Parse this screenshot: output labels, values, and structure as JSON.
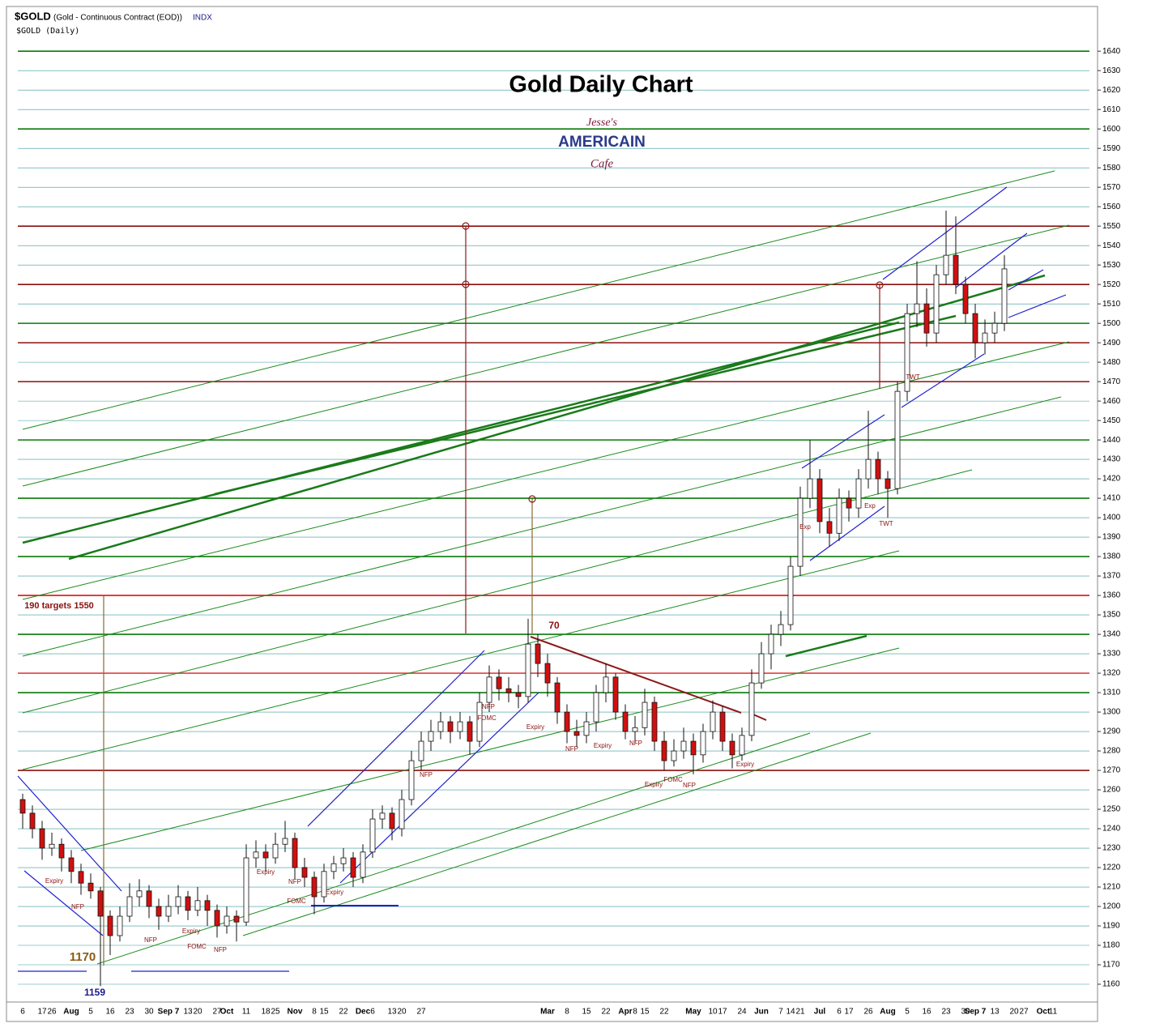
{
  "chart_data": {
    "type": "candlestick",
    "symbol": "$GOLD",
    "subtitle": "(Gold - Continuous Contract (EOD))",
    "exchange": "INDX",
    "period_label": "$GOLD (Daily)",
    "title": "Gold Daily Chart",
    "logo": [
      "Jesse's",
      "AMERICAIN",
      "Cafe"
    ],
    "ylim": [
      1151,
      1663
    ],
    "yticks": [
      1160,
      1170,
      1180,
      1190,
      1200,
      1210,
      1220,
      1230,
      1240,
      1250,
      1260,
      1270,
      1280,
      1290,
      1300,
      1310,
      1320,
      1330,
      1340,
      1350,
      1360,
      1370,
      1380,
      1390,
      1400,
      1410,
      1420,
      1430,
      1440,
      1450,
      1460,
      1470,
      1480,
      1490,
      1500,
      1510,
      1520,
      1530,
      1540,
      1550,
      1560,
      1570,
      1580,
      1590,
      1600,
      1610,
      1620,
      1630,
      1640
    ],
    "grid": true,
    "grid_color": "#3a9a9a",
    "up_color": "#ffffff",
    "down_color": "#d01010",
    "categories": [
      "6",
      null,
      "17",
      "26",
      null,
      "Aug",
      null,
      "5",
      null,
      "16",
      null,
      "23",
      null,
      "30",
      null,
      "Sep 7",
      null,
      "13",
      "20",
      null,
      "27",
      "Oct",
      null,
      "11",
      null,
      "18",
      "25",
      null,
      "Nov",
      null,
      "8",
      "15",
      null,
      "22",
      null,
      "Dec",
      "6",
      null,
      "13",
      "20",
      null,
      "27",
      null,
      null,
      null,
      null,
      null,
      null,
      null,
      null,
      null,
      null,
      null,
      null,
      "Mar",
      null,
      "8",
      null,
      "15",
      null,
      "22",
      null,
      "Apr",
      "8",
      "15",
      null,
      "22",
      null,
      null,
      "May",
      null,
      "10",
      "17",
      null,
      "24",
      null,
      "Jun",
      null,
      "7",
      "14",
      "21",
      null,
      "Jul",
      null,
      "6",
      "17",
      null,
      "26",
      null,
      "Aug",
      null,
      "5",
      null,
      "16",
      null,
      "23",
      null,
      "30",
      "Sep 7",
      null,
      "13",
      null,
      "20",
      "27",
      null,
      "Oct",
      "11",
      null,
      null,
      null,
      null
    ],
    "ohlc": [
      [
        1255,
        1258,
        1240,
        1248
      ],
      [
        1248,
        1252,
        1235,
        1240
      ],
      [
        1240,
        1244,
        1224,
        1230
      ],
      [
        1230,
        1238,
        1226,
        1232
      ],
      [
        1232,
        1235,
        1218,
        1225
      ],
      [
        1225,
        1229,
        1212,
        1218
      ],
      [
        1218,
        1222,
        1206,
        1212
      ],
      [
        1212,
        1217,
        1204,
        1208
      ],
      [
        1208,
        1210,
        1159,
        1195
      ],
      [
        1195,
        1198,
        1175,
        1185
      ],
      [
        1185,
        1200,
        1182,
        1195
      ],
      [
        1195,
        1212,
        1192,
        1205
      ],
      [
        1205,
        1214,
        1200,
        1208
      ],
      [
        1208,
        1211,
        1194,
        1200
      ],
      [
        1200,
        1204,
        1188,
        1195
      ],
      [
        1195,
        1206,
        1192,
        1200
      ],
      [
        1200,
        1211,
        1196,
        1205
      ],
      [
        1205,
        1208,
        1193,
        1198
      ],
      [
        1198,
        1210,
        1195,
        1203
      ],
      [
        1203,
        1206,
        1190,
        1198
      ],
      [
        1198,
        1201,
        1184,
        1190
      ],
      [
        1190,
        1200,
        1186,
        1195
      ],
      [
        1195,
        1198,
        1182,
        1192
      ],
      [
        1192,
        1232,
        1190,
        1225
      ],
      [
        1225,
        1234,
        1220,
        1228
      ],
      [
        1228,
        1232,
        1218,
        1225
      ],
      [
        1225,
        1238,
        1222,
        1232
      ],
      [
        1232,
        1244,
        1228,
        1235
      ],
      [
        1235,
        1238,
        1214,
        1220
      ],
      [
        1220,
        1225,
        1210,
        1215
      ],
      [
        1215,
        1218,
        1196,
        1205
      ],
      [
        1205,
        1222,
        1202,
        1218
      ],
      [
        1218,
        1226,
        1214,
        1222
      ],
      [
        1222,
        1230,
        1218,
        1225
      ],
      [
        1225,
        1228,
        1210,
        1215
      ],
      [
        1215,
        1232,
        1212,
        1228
      ],
      [
        1228,
        1250,
        1225,
        1245
      ],
      [
        1245,
        1252,
        1240,
        1248
      ],
      [
        1248,
        1251,
        1234,
        1240
      ],
      [
        1240,
        1260,
        1236,
        1255
      ],
      [
        1255,
        1280,
        1252,
        1275
      ],
      [
        1275,
        1290,
        1270,
        1285
      ],
      [
        1285,
        1296,
        1280,
        1290
      ],
      [
        1290,
        1300,
        1286,
        1295
      ],
      [
        1295,
        1298,
        1284,
        1290
      ],
      [
        1290,
        1300,
        1286,
        1295
      ],
      [
        1295,
        1298,
        1278,
        1285
      ],
      [
        1285,
        1310,
        1282,
        1305
      ],
      [
        1305,
        1324,
        1300,
        1318
      ],
      [
        1318,
        1322,
        1306,
        1312
      ],
      [
        1312,
        1318,
        1305,
        1310
      ],
      [
        1310,
        1314,
        1302,
        1308
      ],
      [
        1308,
        1348,
        1305,
        1335
      ],
      [
        1335,
        1340,
        1318,
        1325
      ],
      [
        1325,
        1330,
        1308,
        1315
      ],
      [
        1315,
        1318,
        1294,
        1300
      ],
      [
        1300,
        1304,
        1284,
        1290
      ],
      [
        1290,
        1296,
        1282,
        1288
      ],
      [
        1288,
        1300,
        1284,
        1295
      ],
      [
        1295,
        1314,
        1290,
        1310
      ],
      [
        1310,
        1325,
        1305,
        1318
      ],
      [
        1318,
        1320,
        1296,
        1300
      ],
      [
        1300,
        1304,
        1286,
        1290
      ],
      [
        1290,
        1298,
        1284,
        1292
      ],
      [
        1292,
        1312,
        1288,
        1305
      ],
      [
        1305,
        1308,
        1280,
        1285
      ],
      [
        1285,
        1290,
        1270,
        1275
      ],
      [
        1275,
        1286,
        1272,
        1280
      ],
      [
        1280,
        1292,
        1276,
        1285
      ],
      [
        1285,
        1289,
        1268,
        1278
      ],
      [
        1278,
        1294,
        1274,
        1290
      ],
      [
        1290,
        1306,
        1286,
        1300
      ],
      [
        1300,
        1303,
        1280,
        1285
      ],
      [
        1285,
        1289,
        1271,
        1278
      ],
      [
        1278,
        1292,
        1275,
        1288
      ],
      [
        1288,
        1322,
        1285,
        1315
      ],
      [
        1315,
        1336,
        1312,
        1330
      ],
      [
        1330,
        1345,
        1322,
        1340
      ],
      [
        1340,
        1352,
        1334,
        1345
      ],
      [
        1345,
        1380,
        1342,
        1375
      ],
      [
        1375,
        1416,
        1370,
        1410
      ],
      [
        1410,
        1440,
        1405,
        1420
      ],
      [
        1420,
        1425,
        1392,
        1398
      ],
      [
        1398,
        1405,
        1385,
        1392
      ],
      [
        1392,
        1415,
        1388,
        1410
      ],
      [
        1410,
        1414,
        1398,
        1405
      ],
      [
        1405,
        1425,
        1400,
        1420
      ],
      [
        1420,
        1455,
        1415,
        1430
      ],
      [
        1430,
        1434,
        1412,
        1420
      ],
      [
        1420,
        1424,
        1400,
        1415
      ],
      [
        1415,
        1470,
        1412,
        1465
      ],
      [
        1465,
        1510,
        1460,
        1505
      ],
      [
        1505,
        1532,
        1498,
        1510
      ],
      [
        1510,
        1518,
        1488,
        1495
      ],
      [
        1495,
        1530,
        1490,
        1525
      ],
      [
        1525,
        1558,
        1520,
        1535
      ],
      [
        1535,
        1555,
        1515,
        1520
      ],
      [
        1520,
        1524,
        1500,
        1505
      ],
      [
        1505,
        1510,
        1482,
        1490
      ],
      [
        1490,
        1502,
        1484,
        1495
      ],
      [
        1495,
        1506,
        1490,
        1500
      ],
      [
        1500,
        1535,
        1496,
        1528
      ],
      null,
      null,
      null,
      null,
      null,
      null,
      null,
      null,
      null
    ],
    "levels": [
      {
        "value": 1640,
        "color": "#0a7a0a"
      },
      {
        "value": 1600,
        "color": "#0a7a0a"
      },
      {
        "value": 1550,
        "color": "#8b1010"
      },
      {
        "value": 1520,
        "color": "#8b1010"
      },
      {
        "value": 1500,
        "color": "#0a7a0a"
      },
      {
        "value": 1490,
        "color": "#8b1010"
      },
      {
        "value": 1470,
        "color": "#8b1010"
      },
      {
        "value": 1440,
        "color": "#0a7a0a"
      },
      {
        "value": 1410,
        "color": "#0a7a0a"
      },
      {
        "value": 1380,
        "color": "#0a7a0a"
      },
      {
        "value": 1360,
        "color": "#e01010"
      },
      {
        "value": 1340,
        "color": "#0a7a0a"
      },
      {
        "value": 1320,
        "color": "#e04040"
      },
      {
        "value": 1310,
        "color": "#0a7a0a"
      },
      {
        "value": 1270,
        "color": "#8b1010"
      }
    ],
    "annotations": [
      {
        "text": "Expiry",
        "color": "#8b1010"
      },
      {
        "text": "NFP",
        "color": "#8b1010"
      },
      {
        "text": "NFP",
        "color": "#8b1010"
      },
      {
        "text": "Expiry",
        "color": "#8b1010"
      },
      {
        "text": "FOMC",
        "color": "#8b1010"
      },
      {
        "text": "NFP",
        "color": "#8b1010"
      },
      {
        "text": "Expiry",
        "color": "#8b1010"
      },
      {
        "text": "NFP",
        "color": "#8b1010"
      },
      {
        "text": "FOMC",
        "color": "#8b1010"
      },
      {
        "text": "Expiry",
        "color": "#8b1010"
      },
      {
        "text": "NFP",
        "color": "#8b1010"
      },
      {
        "text": "NFP",
        "color": "#8b1010"
      },
      {
        "text": "FOMC",
        "color": "#8b1010"
      },
      {
        "text": "Expiry",
        "color": "#8b1010"
      },
      {
        "text": "NFP",
        "color": "#8b1010"
      },
      {
        "text": "Expiry",
        "color": "#8b1010"
      },
      {
        "text": "NFP",
        "color": "#8b1010"
      },
      {
        "text": "Expiry",
        "color": "#8b1010"
      },
      {
        "text": "FOMC",
        "color": "#8b1010"
      },
      {
        "text": "NFP",
        "color": "#8b1010"
      },
      {
        "text": "Expiry",
        "color": "#8b1010"
      },
      {
        "text": "Exp",
        "color": "#8b1010"
      },
      {
        "text": "Exp",
        "color": "#8b1010"
      },
      {
        "text": "TWT",
        "color": "#8b1010"
      },
      {
        "text": "TWT",
        "color": "#8b1010"
      },
      {
        "text": "190 targets 1550",
        "color": "#8b1010"
      },
      {
        "text": "70",
        "color": "#8b1010"
      },
      {
        "text": "1170",
        "color": "#8b5a10"
      },
      {
        "text": "1159",
        "color": "#1a1a8b"
      }
    ]
  }
}
